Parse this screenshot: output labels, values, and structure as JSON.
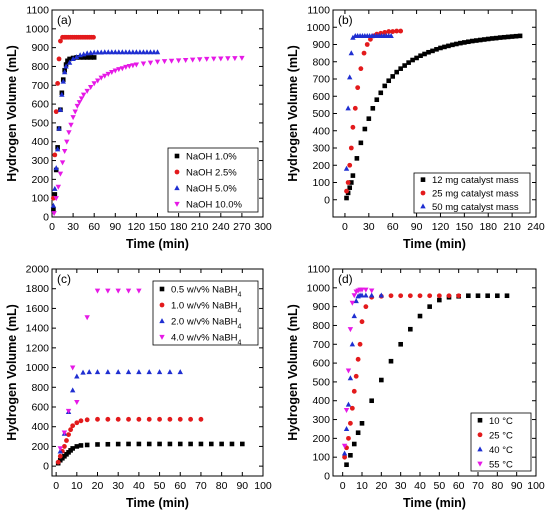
{
  "chart_data": [
    {
      "type": "scatter",
      "panel_label": "(a)",
      "xlabel": "Time (min)",
      "ylabel": "Hydrogen Volume (mL)",
      "xlim": [
        0,
        300
      ],
      "ylim": [
        0,
        1100
      ],
      "xticks": [
        0,
        30,
        60,
        90,
        120,
        150,
        180,
        210,
        240,
        270,
        300
      ],
      "yticks": [
        0,
        100,
        200,
        300,
        400,
        500,
        600,
        700,
        800,
        900,
        1000,
        1100
      ],
      "legend_position": "bottom-right",
      "series": [
        {
          "name": "NaOH  1.0%",
          "color": "#000000",
          "marker": "square",
          "x": [
            2,
            4,
            6,
            8,
            10,
            12,
            14,
            16,
            18,
            20,
            22,
            25,
            30,
            35,
            40,
            45,
            50,
            55,
            60
          ],
          "y": [
            40,
            120,
            250,
            370,
            470,
            570,
            660,
            730,
            780,
            810,
            830,
            840,
            845,
            848,
            848,
            848,
            848,
            848,
            848
          ]
        },
        {
          "name": "NaOH  2.5%",
          "color": "#e31a1c",
          "marker": "circle",
          "x": [
            2,
            4,
            6,
            8,
            10,
            12,
            15,
            18,
            20,
            23,
            26,
            29,
            32,
            35,
            38,
            41,
            44,
            47,
            50,
            53,
            56,
            59
          ],
          "y": [
            100,
            330,
            560,
            710,
            840,
            935,
            955,
            955,
            955,
            955,
            955,
            955,
            955,
            955,
            955,
            955,
            955,
            955,
            955,
            955,
            955,
            955
          ]
        },
        {
          "name": "NaOH  5.0%",
          "color": "#1f2fd1",
          "marker": "triangle",
          "x": [
            2,
            4,
            6,
            8,
            10,
            12,
            14,
            16,
            18,
            20,
            25,
            30,
            35,
            40,
            45,
            50,
            55,
            60,
            65,
            70,
            75,
            80,
            85,
            90,
            95,
            100,
            105,
            110,
            115,
            120,
            125,
            130,
            135,
            140,
            145,
            150
          ],
          "y": [
            60,
            150,
            260,
            360,
            470,
            570,
            650,
            720,
            770,
            800,
            820,
            840,
            850,
            860,
            865,
            870,
            872,
            874,
            875,
            875,
            876,
            876,
            876,
            876,
            876,
            876,
            876,
            876,
            876,
            876,
            876,
            876,
            876,
            876,
            876,
            876
          ]
        },
        {
          "name": "NaOH  10.0%",
          "color": "#e619e6",
          "marker": "triangle-down",
          "x": [
            3,
            6,
            9,
            12,
            15,
            18,
            21,
            24,
            27,
            30,
            33,
            36,
            39,
            42,
            45,
            50,
            55,
            60,
            65,
            70,
            75,
            80,
            85,
            90,
            95,
            100,
            105,
            110,
            115,
            120,
            130,
            140,
            150,
            160,
            170,
            180,
            190,
            200,
            210,
            220,
            230,
            240,
            250,
            260,
            270
          ],
          "y": [
            20,
            100,
            160,
            230,
            290,
            350,
            400,
            450,
            490,
            530,
            560,
            590,
            610,
            630,
            650,
            670,
            690,
            710,
            725,
            740,
            750,
            760,
            770,
            778,
            785,
            790,
            797,
            802,
            806,
            810,
            815,
            820,
            825,
            828,
            830,
            832,
            834,
            836,
            838,
            840,
            841,
            842,
            843,
            844,
            845
          ]
        }
      ]
    },
    {
      "type": "scatter",
      "panel_label": "(b)",
      "xlabel": "Time (min)",
      "ylabel": "Hydrogen Volume (mL)",
      "xlim": [
        -15,
        240
      ],
      "ylim": [
        -100,
        1100
      ],
      "xticks": [
        0,
        30,
        60,
        90,
        120,
        150,
        180,
        210,
        240
      ],
      "yticks": [
        0,
        100,
        200,
        300,
        400,
        500,
        600,
        700,
        800,
        900,
        1000,
        1100
      ],
      "legend_position": "bottom-right",
      "series": [
        {
          "name": "12 mg catalyst mass",
          "color": "#000000",
          "marker": "square",
          "x": [
            2,
            4,
            6,
            8,
            10,
            15,
            20,
            25,
            30,
            35,
            40,
            45,
            50,
            55,
            60,
            65,
            70,
            75,
            80,
            85,
            90,
            95,
            100,
            105,
            110,
            115,
            120,
            125,
            130,
            135,
            140,
            145,
            150,
            155,
            160,
            165,
            170,
            175,
            180,
            185,
            190,
            195,
            200,
            205,
            210,
            215,
            220
          ],
          "y": [
            10,
            40,
            70,
            100,
            140,
            240,
            330,
            410,
            470,
            530,
            580,
            620,
            660,
            690,
            715,
            740,
            760,
            778,
            795,
            810,
            822,
            835,
            845,
            855,
            863,
            872,
            880,
            886,
            892,
            898,
            903,
            908,
            912,
            916,
            920,
            923,
            926,
            929,
            932,
            935,
            937,
            940,
            942,
            944,
            946,
            948,
            950
          ]
        },
        {
          "name": "25 mg catalyst mass",
          "color": "#e31a1c",
          "marker": "circle",
          "x": [
            2,
            4,
            6,
            8,
            10,
            13,
            16,
            20,
            24,
            28,
            32,
            36,
            40,
            45,
            50,
            55,
            60,
            65,
            70
          ],
          "y": [
            50,
            100,
            200,
            300,
            420,
            530,
            650,
            760,
            850,
            900,
            930,
            950,
            960,
            965,
            970,
            975,
            975,
            978,
            978
          ]
        },
        {
          "name": "50 mg catalyst mass",
          "color": "#1f2fd1",
          "marker": "triangle",
          "x": [
            2,
            4,
            6,
            8,
            10,
            13,
            16,
            19,
            22,
            25,
            28,
            31,
            34,
            37,
            40,
            43,
            46,
            49,
            52,
            55,
            58
          ],
          "y": [
            180,
            530,
            710,
            850,
            940,
            950,
            950,
            950,
            950,
            950,
            950,
            950,
            950,
            950,
            950,
            950,
            950,
            950,
            950,
            950,
            950
          ]
        }
      ]
    },
    {
      "type": "scatter",
      "panel_label": "(c)",
      "xlabel": "Time (min)",
      "ylabel": "Hydrogen Volume (mL)",
      "xlim": [
        -2,
        100
      ],
      "ylim": [
        -100,
        2000
      ],
      "xticks": [
        0,
        10,
        20,
        30,
        40,
        50,
        60,
        70,
        80,
        90,
        100
      ],
      "yticks": [
        0,
        200,
        400,
        600,
        800,
        1000,
        1200,
        1400,
        1600,
        1800,
        2000
      ],
      "legend_position": "top-right",
      "series": [
        {
          "name": "0.5 w/v% NaBH",
          "name_sub": "4",
          "color": "#000000",
          "marker": "square",
          "x": [
            1,
            2,
            3,
            4,
            5,
            6,
            7,
            8,
            10,
            12,
            15,
            20,
            25,
            30,
            35,
            40,
            45,
            50,
            55,
            60,
            65,
            70,
            75,
            80,
            85,
            90
          ],
          "y": [
            30,
            60,
            80,
            100,
            120,
            140,
            160,
            180,
            200,
            210,
            215,
            220,
            222,
            224,
            225,
            225,
            225,
            225,
            225,
            225,
            225,
            225,
            225,
            225,
            225,
            225
          ]
        },
        {
          "name": "1.0 w/v% NaBH",
          "name_sub": "4",
          "color": "#e31a1c",
          "marker": "circle",
          "x": [
            1,
            2,
            3,
            4,
            5,
            6,
            7,
            8,
            10,
            12,
            15,
            20,
            25,
            30,
            35,
            40,
            45,
            50,
            55,
            60,
            65,
            70
          ],
          "y": [
            40,
            100,
            150,
            200,
            260,
            320,
            370,
            410,
            440,
            460,
            470,
            475,
            475,
            475,
            475,
            475,
            475,
            475,
            475,
            475,
            475,
            475
          ]
        },
        {
          "name": "2.0 w/v% NaBH",
          "name_sub": "4",
          "color": "#1f2fd1",
          "marker": "triangle",
          "x": [
            2,
            4,
            6,
            8,
            10,
            13,
            16,
            20,
            25,
            30,
            35,
            40,
            45,
            50,
            55,
            60
          ],
          "y": [
            150,
            330,
            550,
            770,
            910,
            950,
            955,
            955,
            955,
            955,
            955,
            955,
            955,
            955,
            955,
            955
          ]
        },
        {
          "name": "4.0 w/v% NaBH",
          "name_sub": "4",
          "color": "#e619e6",
          "marker": "triangle-down",
          "x": [
            2,
            4,
            6,
            8,
            10,
            15,
            20,
            25,
            30,
            35,
            40
          ],
          "y": [
            180,
            340,
            560,
            1000,
            650,
            1510,
            1780,
            1780,
            1780,
            1780,
            1780
          ]
        }
      ]
    },
    {
      "type": "scatter",
      "panel_label": "(d)",
      "xlabel": "Time (min)",
      "ylabel": "Hydrogen Volume (mL)",
      "xlim": [
        -5,
        100
      ],
      "ylim": [
        0,
        1100
      ],
      "xticks": [
        0,
        10,
        20,
        30,
        40,
        50,
        60,
        70,
        80,
        90,
        100
      ],
      "yticks": [
        0,
        100,
        200,
        300,
        400,
        500,
        600,
        700,
        800,
        900,
        1000,
        1100
      ],
      "legend_position": "bottom-right",
      "series": [
        {
          "name": "10 °C",
          "color": "#000000",
          "marker": "square",
          "x": [
            2,
            4,
            6,
            8,
            10,
            15,
            20,
            25,
            30,
            35,
            40,
            45,
            50,
            55,
            60,
            65,
            70,
            75,
            80,
            85
          ],
          "y": [
            60,
            110,
            170,
            230,
            280,
            400,
            510,
            610,
            700,
            780,
            850,
            900,
            935,
            950,
            955,
            958,
            958,
            958,
            958,
            958
          ]
        },
        {
          "name": "25 °C",
          "color": "#e31a1c",
          "marker": "circle",
          "x": [
            1,
            2,
            3,
            4,
            5,
            6,
            7,
            8,
            9,
            10,
            12,
            15,
            20,
            25,
            30,
            35,
            40,
            45,
            50,
            55,
            60
          ],
          "y": [
            100,
            150,
            200,
            280,
            360,
            450,
            530,
            620,
            700,
            820,
            900,
            950,
            955,
            958,
            958,
            958,
            958,
            958,
            958,
            958,
            958
          ]
        },
        {
          "name": "40 °C",
          "color": "#1f2fd1",
          "marker": "triangle",
          "x": [
            1,
            2,
            3,
            4,
            5,
            6,
            7,
            8,
            9,
            10,
            12,
            15,
            20
          ],
          "y": [
            120,
            250,
            380,
            520,
            700,
            850,
            930,
            955,
            960,
            960,
            960,
            960,
            960
          ]
        },
        {
          "name": "55 °C",
          "color": "#e619e6",
          "marker": "triangle-down",
          "x": [
            1,
            2,
            3,
            4,
            5,
            6,
            7,
            8,
            9,
            10,
            12,
            15
          ],
          "y": [
            160,
            350,
            560,
            780,
            920,
            960,
            980,
            985,
            990,
            990,
            990,
            985
          ]
        }
      ]
    }
  ]
}
